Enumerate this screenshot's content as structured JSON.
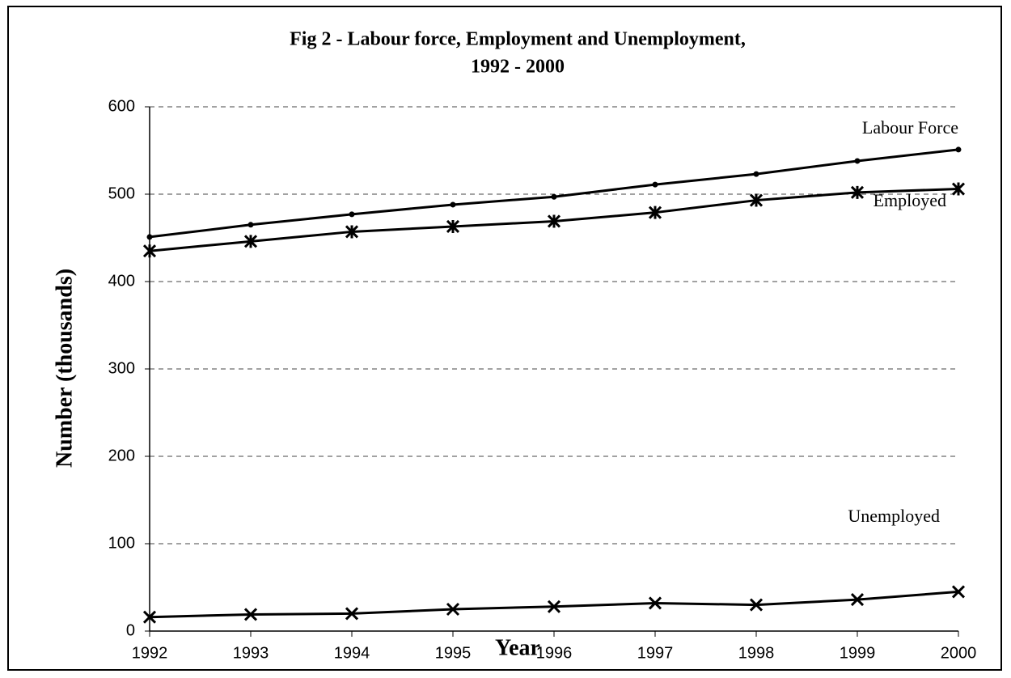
{
  "chart_data": {
    "type": "line",
    "title": [
      "Fig 2 - Labour force, Employment and Unemployment,",
      "1992 - 2000"
    ],
    "xlabel": "Year",
    "ylabel": "Number (thousands)",
    "x": [
      1992,
      1993,
      1994,
      1995,
      1996,
      1997,
      1998,
      1999,
      2000
    ],
    "series": [
      {
        "name": "Labour Force",
        "color": "#000000",
        "marker": "dot",
        "values": [
          451,
          465,
          477,
          488,
          497,
          511,
          523,
          538,
          551
        ]
      },
      {
        "name": "Employed",
        "color": "#000000",
        "marker": "asterisk",
        "values": [
          435,
          446,
          457,
          463,
          469,
          479,
          493,
          502,
          506
        ]
      },
      {
        "name": "Unemployed",
        "color": "#000000",
        "marker": "x",
        "values": [
          16,
          19,
          20,
          25,
          28,
          32,
          30,
          36,
          45
        ]
      }
    ],
    "xlim": [
      1992,
      2000
    ],
    "xticks": [
      1992,
      1993,
      1994,
      1995,
      1996,
      1997,
      1998,
      1999,
      2000
    ],
    "ylim": [
      0,
      600
    ],
    "yticks": [
      0,
      100,
      200,
      300,
      400,
      500,
      600
    ],
    "grid": true
  }
}
